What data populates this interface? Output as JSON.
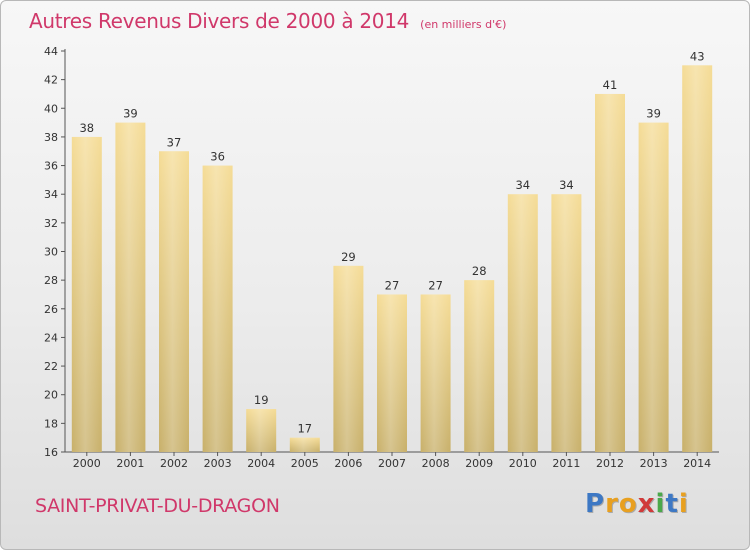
{
  "header": {
    "title": "Autres Revenus Divers de 2000 à 2014",
    "subtitle": "(en milliers d'€)"
  },
  "footer": {
    "town": "SAINT-PRIVAT-DU-DRAGON",
    "logo_letters": [
      "P",
      "r",
      "o",
      "x",
      "i",
      "t",
      "i"
    ],
    "logo_colors": [
      "#3d78c4",
      "#e8a020",
      "#e8a020",
      "#d03a3a",
      "#4aa84a",
      "#3d78c4",
      "#e8a020"
    ]
  },
  "colors": {
    "accent": "#d0386a",
    "bar_top": "#f5dc96",
    "bar_bottom": "#c8b06a"
  },
  "chart_data": {
    "type": "bar",
    "categories": [
      "2000",
      "2001",
      "2002",
      "2003",
      "2004",
      "2005",
      "2006",
      "2007",
      "2008",
      "2009",
      "2010",
      "2011",
      "2012",
      "2013",
      "2014"
    ],
    "values": [
      38,
      39,
      37,
      36,
      19,
      17,
      29,
      27,
      27,
      28,
      34,
      34,
      41,
      39,
      43
    ],
    "title": "Autres Revenus Divers de 2000 à 2014",
    "ylim": [
      16,
      44
    ],
    "yticks": [
      16,
      18,
      20,
      22,
      24,
      26,
      28,
      30,
      32,
      34,
      36,
      38,
      40,
      42,
      44
    ],
    "grid": false,
    "data_labels": true
  }
}
